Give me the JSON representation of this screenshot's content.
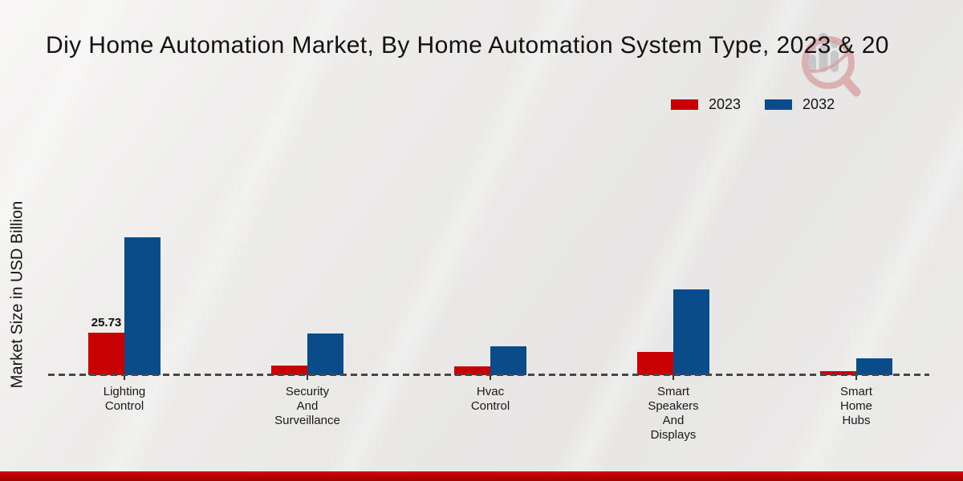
{
  "title": "Diy Home Automation Market, By Home Automation System Type, 2023 & 20",
  "ylabel": "Market Size in USD Billion",
  "watermark_icon": "magnifier-people-chart-logo",
  "colors": {
    "series_2023": "#c80202",
    "series_2032": "#0a4c89",
    "bottom_strip": "#b50303",
    "baseline": "#474747",
    "background": "#e9e8e7"
  },
  "chart_data": {
    "type": "bar",
    "title": "Diy Home Automation Market, By Home Automation System Type, 2023 & 20",
    "xlabel": "",
    "ylabel": "Market Size in USD Billion",
    "categories": [
      [
        "Lighting",
        "Control"
      ],
      [
        "Security",
        "And",
        "Surveillance"
      ],
      [
        "Hvac",
        "Control"
      ],
      [
        "Smart",
        "Speakers",
        "And",
        "Displays"
      ],
      [
        "Smart",
        "Home",
        "Hubs"
      ]
    ],
    "series": [
      {
        "name": "2023",
        "color": "#c80202",
        "values": [
          25.73,
          5.8,
          5.3,
          14.1,
          2.4
        ]
      },
      {
        "name": "2032",
        "color": "#0a4c89",
        "values": [
          83.5,
          25.2,
          17.3,
          52.0,
          10.4
        ]
      }
    ],
    "value_labels": [
      {
        "series_index": 0,
        "category_index": 0,
        "text": "25.73"
      }
    ],
    "ylim": [
      0,
      95
    ],
    "grid": false,
    "legend_position": "top-right",
    "baseline_style": "dashed"
  }
}
